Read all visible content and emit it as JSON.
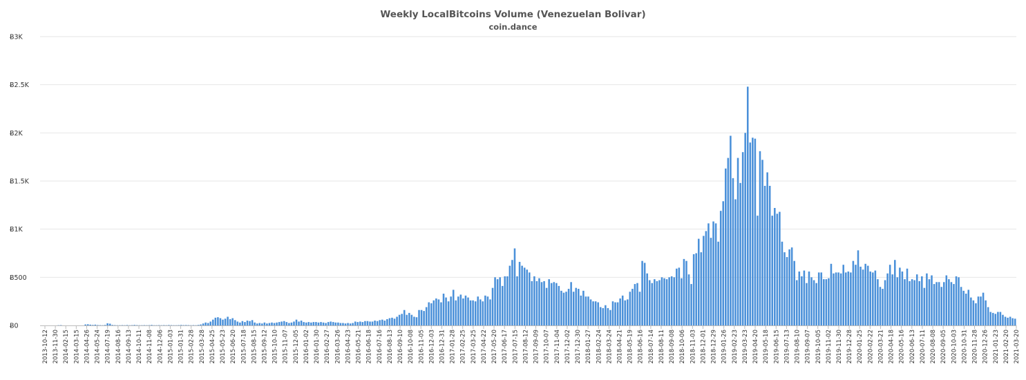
{
  "chart_data": {
    "type": "bar",
    "title": "Weekly LocalBitcoins Volume (Venezuelan Bolivar)",
    "subtitle": "coin.dance",
    "xlabel": "",
    "ylabel": "",
    "ylim": [
      0,
      3000
    ],
    "grid": true,
    "bar_color": "#4a90d9",
    "yticks": [
      {
        "value": 0,
        "label": "Ƀ0"
      },
      {
        "value": 500,
        "label": "Ƀ500"
      },
      {
        "value": 1000,
        "label": "Ƀ1K"
      },
      {
        "value": 1500,
        "label": "Ƀ1.5K"
      },
      {
        "value": 2000,
        "label": "Ƀ2K"
      },
      {
        "value": 2500,
        "label": "Ƀ2.5K"
      },
      {
        "value": 3000,
        "label": "Ƀ3K"
      }
    ],
    "start_week": "2013-10-12",
    "xtick_labels": [
      "2013-10-12",
      "2013-11-30",
      "2014-02-15",
      "2014-03-15",
      "2014-04-26",
      "2014-05-24",
      "2014-07-19",
      "2014-08-16",
      "2014-09-13",
      "2014-10-11",
      "2014-11-08",
      "2014-12-06",
      "2015-01-03",
      "2015-01-31",
      "2015-02-28",
      "2015-03-28",
      "2015-04-25",
      "2015-05-23",
      "2015-06-20",
      "2015-07-18",
      "2015-08-15",
      "2015-09-12",
      "2015-10-10",
      "2015-11-07",
      "2015-12-05",
      "2016-01-02",
      "2016-01-30",
      "2016-02-27",
      "2016-03-26",
      "2016-04-23",
      "2016-05-21",
      "2016-06-18",
      "2016-07-16",
      "2016-08-13",
      "2016-09-10",
      "2016-10-08",
      "2016-11-05",
      "2016-12-03",
      "2016-12-31",
      "2017-01-28",
      "2017-02-25",
      "2017-03-25",
      "2017-04-22",
      "2017-05-20",
      "2017-06-17",
      "2017-07-15",
      "2017-08-12",
      "2017-09-09",
      "2017-10-07",
      "2017-11-04",
      "2017-12-02",
      "2017-12-30",
      "2018-01-27",
      "2018-02-24",
      "2018-03-24",
      "2018-04-21",
      "2018-05-19",
      "2018-06-16",
      "2018-07-14",
      "2018-08-11",
      "2018-09-08",
      "2018-10-06",
      "2018-11-03",
      "2018-12-01",
      "2018-12-29",
      "2019-01-26",
      "2019-02-23",
      "2019-03-23",
      "2019-04-20",
      "2019-05-18",
      "2019-06-15",
      "2019-07-13",
      "2019-08-10",
      "2019-09-07",
      "2019-10-05",
      "2019-11-02",
      "2019-11-30",
      "2019-12-28",
      "2020-01-25",
      "2020-02-22",
      "2020-03-21",
      "2020-04-18",
      "2020-05-16",
      "2020-06-13",
      "2020-07-11",
      "2020-08-08",
      "2020-09-05",
      "2020-10-03",
      "2020-10-31",
      "2020-11-28",
      "2020-12-26",
      "2021-01-23",
      "2021-02-20",
      "2021-03-20"
    ],
    "values": [
      0,
      0,
      0,
      0,
      0,
      0,
      0,
      2,
      3,
      0,
      0,
      0,
      0,
      0,
      0,
      0,
      0,
      0,
      10,
      12,
      8,
      5,
      8,
      4,
      3,
      2,
      5,
      22,
      18,
      5,
      3,
      2,
      2,
      3,
      2,
      4,
      2,
      3,
      5,
      3,
      2,
      2,
      3,
      2,
      3,
      5,
      2,
      2,
      3,
      2,
      3,
      2,
      4,
      3,
      2,
      2,
      3,
      5,
      3,
      4,
      3,
      2,
      3,
      2,
      5,
      10,
      20,
      30,
      25,
      40,
      60,
      80,
      85,
      75,
      60,
      70,
      90,
      65,
      75,
      55,
      40,
      30,
      45,
      35,
      50,
      45,
      55,
      30,
      20,
      25,
      20,
      30,
      20,
      25,
      30,
      25,
      30,
      35,
      40,
      45,
      35,
      25,
      30,
      40,
      60,
      40,
      50,
      35,
      30,
      35,
      30,
      35,
      35,
      30,
      35,
      30,
      25,
      35,
      40,
      35,
      30,
      30,
      25,
      25,
      20,
      25,
      20,
      25,
      40,
      35,
      40,
      35,
      45,
      45,
      40,
      40,
      50,
      45,
      55,
      60,
      50,
      65,
      75,
      80,
      70,
      90,
      110,
      120,
      160,
      110,
      130,
      110,
      90,
      85,
      160,
      160,
      150,
      190,
      240,
      230,
      260,
      280,
      270,
      240,
      330,
      290,
      250,
      300,
      370,
      260,
      300,
      320,
      280,
      310,
      290,
      260,
      260,
      250,
      300,
      270,
      250,
      310,
      300,
      270,
      390,
      500,
      480,
      500,
      410,
      510,
      510,
      620,
      680,
      800,
      510,
      660,
      620,
      600,
      580,
      550,
      460,
      510,
      460,
      490,
      450,
      460,
      390,
      480,
      440,
      450,
      440,
      410,
      360,
      340,
      350,
      380,
      450,
      350,
      390,
      380,
      310,
      360,
      300,
      300,
      270,
      250,
      250,
      240,
      190,
      180,
      210,
      180,
      160,
      250,
      240,
      240,
      280,
      310,
      260,
      270,
      350,
      380,
      430,
      440,
      350,
      670,
      650,
      540,
      470,
      440,
      480,
      460,
      470,
      500,
      490,
      480,
      500,
      510,
      500,
      590,
      600,
      490,
      690,
      670,
      530,
      430,
      740,
      750,
      900,
      760,
      930,
      980,
      1060,
      910,
      1080,
      1060,
      870,
      1190,
      1290,
      1630,
      1740,
      1970,
      1530,
      1310,
      1740,
      1480,
      1800,
      2000,
      2480,
      1900,
      1950,
      1940,
      1140,
      1810,
      1720,
      1450,
      1590,
      1450,
      1140,
      1220,
      1160,
      1180,
      870,
      760,
      710,
      790,
      810,
      670,
      470,
      560,
      510,
      570,
      440,
      560,
      500,
      470,
      440,
      550,
      550,
      480,
      480,
      490,
      640,
      540,
      550,
      550,
      540,
      630,
      550,
      560,
      550,
      670,
      630,
      780,
      610,
      580,
      640,
      620,
      560,
      550,
      570,
      480,
      400,
      380,
      470,
      540,
      630,
      530,
      680,
      500,
      600,
      560,
      480,
      590,
      460,
      480,
      470,
      530,
      460,
      510,
      390,
      540,
      480,
      520,
      430,
      450,
      450,
      400,
      450,
      520,
      480,
      450,
      430,
      510,
      500,
      400,
      360,
      330,
      370,
      290,
      260,
      230,
      300,
      300,
      340,
      260,
      190,
      140,
      130,
      120,
      140,
      140,
      110,
      90,
      80,
      90,
      75,
      70
    ]
  }
}
